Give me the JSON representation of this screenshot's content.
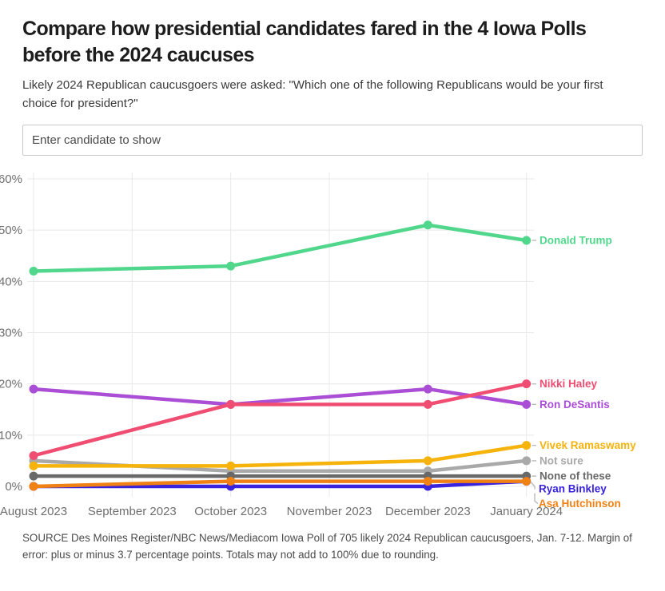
{
  "header": {
    "title": "Compare how presidential candidates fared in the 4 Iowa Polls before the 2024 caucuses",
    "subtitle": "Likely 2024 Republican caucusgoers were asked: \"Which one of the following Republicans would be your first choice for president?\""
  },
  "search": {
    "placeholder": "Enter candidate to show"
  },
  "chart_data": {
    "type": "line",
    "x_ticks": [
      "August 2023",
      "September 2023",
      "October 2023",
      "November 2023",
      "December 2023",
      "January 2024"
    ],
    "poll_x": [
      "August 2023",
      "October 2023",
      "December 2023",
      "January 2024"
    ],
    "y_ticks": [
      "0%",
      "10%",
      "20%",
      "30%",
      "40%",
      "50%",
      "60%"
    ],
    "ylim": [
      0,
      60
    ],
    "unit": "%",
    "grid": true,
    "legend_position": "end-of-line-labels",
    "series": [
      {
        "name": "Donald Trump",
        "color": "#50d78c",
        "values": [
          42,
          43,
          51,
          48
        ]
      },
      {
        "name": "Nikki Haley",
        "color": "#ef4e72",
        "values": [
          6,
          16,
          16,
          20
        ]
      },
      {
        "name": "Ron DeSantis",
        "color": "#ab4ed6",
        "values": [
          19,
          16,
          19,
          16
        ]
      },
      {
        "name": "Vivek Ramaswamy",
        "color": "#f5b30b",
        "values": [
          4,
          4,
          5,
          8
        ]
      },
      {
        "name": "Not sure",
        "color": "#a9a9a9",
        "values": [
          5,
          3,
          3,
          5
        ]
      },
      {
        "name": "None of these",
        "color": "#696969",
        "values": [
          2,
          2,
          2,
          2
        ]
      },
      {
        "name": "Ryan Binkley",
        "color": "#3a23dd",
        "values": [
          0,
          0,
          0,
          1
        ]
      },
      {
        "name": "Asa Hutchinson",
        "color": "#f08114",
        "values": [
          0,
          1,
          1,
          1
        ]
      }
    ]
  },
  "footer": {
    "source": "SOURCE Des Moines Register/NBC News/Mediacom Iowa Poll of 705 likely 2024 Republican caucusgoers, Jan. 7-12. Margin of error: plus or minus 3.7 percentage points. Totals may not add to 100% due to rounding."
  }
}
